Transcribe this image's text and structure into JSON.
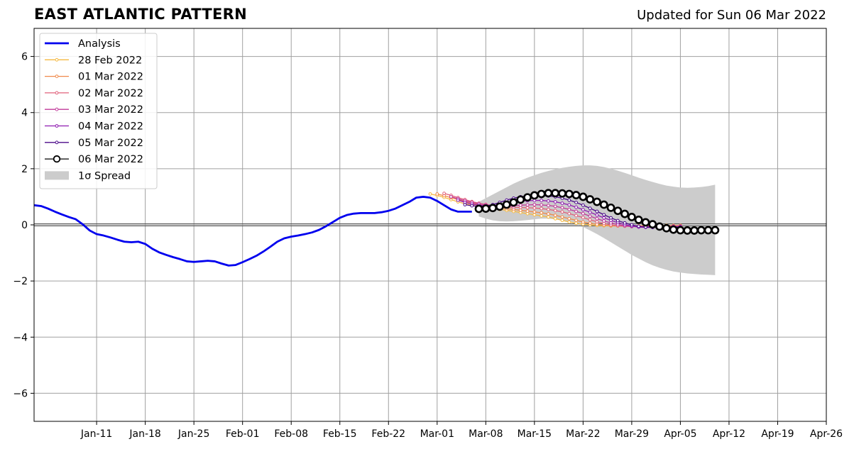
{
  "title": "EAST ATLANTIC PATTERN",
  "updated": "Updated for Sun 06 Mar 2022",
  "chart_data": {
    "type": "line",
    "title": "EAST ATLANTIC PATTERN",
    "subtitle": "Updated for Sun 06 Mar 2022",
    "xlabel": "",
    "ylabel": "",
    "x_range": [
      "2022-01-02",
      "2022-04-26"
    ],
    "ylim": [
      -7,
      7
    ],
    "y_ticks": [
      -6,
      -4,
      -2,
      0,
      2,
      4,
      6
    ],
    "y_tick_labels": [
      "−6",
      "−4",
      "−2",
      "0",
      "2",
      "4",
      "6"
    ],
    "x_ticks": [
      "2022-01-11",
      "2022-01-18",
      "2022-01-25",
      "2022-02-01",
      "2022-02-08",
      "2022-02-15",
      "2022-02-22",
      "2022-03-01",
      "2022-03-08",
      "2022-03-15",
      "2022-03-22",
      "2022-03-29",
      "2022-04-05",
      "2022-04-12",
      "2022-04-19",
      "2022-04-26"
    ],
    "x_tick_labels": [
      "Jan-11",
      "Jan-18",
      "Jan-25",
      "Feb-01",
      "Feb-08",
      "Feb-15",
      "Feb-22",
      "Mar-01",
      "Mar-08",
      "Mar-15",
      "Mar-22",
      "Mar-29",
      "Apr-05",
      "Apr-12",
      "Apr-19",
      "Apr-26"
    ],
    "grid": true,
    "zero_line": true,
    "legend_position": "top-left",
    "colors": {
      "analysis": "#0000ee",
      "28 Feb 2022": "#f5b942",
      "01 Mar 2022": "#f0894a",
      "02 Mar 2022": "#e0607a",
      "03 Mar 2022": "#c0399a",
      "04 Mar 2022": "#8e1bb0",
      "05 Mar 2022": "#4b0a8a",
      "06 Mar 2022": "#000000",
      "spread": "#cccccc"
    },
    "analysis": {
      "name": "Analysis",
      "x": [
        "2022-01-02",
        "2022-01-03",
        "2022-01-04",
        "2022-01-05",
        "2022-01-06",
        "2022-01-07",
        "2022-01-08",
        "2022-01-09",
        "2022-01-10",
        "2022-01-11",
        "2022-01-12",
        "2022-01-13",
        "2022-01-14",
        "2022-01-15",
        "2022-01-16",
        "2022-01-17",
        "2022-01-18",
        "2022-01-19",
        "2022-01-20",
        "2022-01-21",
        "2022-01-22",
        "2022-01-23",
        "2022-01-24",
        "2022-01-25",
        "2022-01-26",
        "2022-01-27",
        "2022-01-28",
        "2022-01-29",
        "2022-01-30",
        "2022-01-31",
        "2022-02-01",
        "2022-02-02",
        "2022-02-03",
        "2022-02-04",
        "2022-02-05",
        "2022-02-06",
        "2022-02-07",
        "2022-02-08",
        "2022-02-09",
        "2022-02-10",
        "2022-02-11",
        "2022-02-12",
        "2022-02-13",
        "2022-02-14",
        "2022-02-15",
        "2022-02-16",
        "2022-02-17",
        "2022-02-18",
        "2022-02-19",
        "2022-02-20",
        "2022-02-21",
        "2022-02-22",
        "2022-02-23",
        "2022-02-24",
        "2022-02-25",
        "2022-02-26",
        "2022-02-27",
        "2022-02-28",
        "2022-03-01",
        "2022-03-02",
        "2022-03-03",
        "2022-03-04",
        "2022-03-05",
        "2022-03-06"
      ],
      "values": [
        0.7,
        0.67,
        0.58,
        0.47,
        0.37,
        0.28,
        0.2,
        0.02,
        -0.2,
        -0.33,
        -0.38,
        -0.45,
        -0.53,
        -0.6,
        -0.62,
        -0.6,
        -0.68,
        -0.85,
        -0.98,
        -1.07,
        -1.15,
        -1.22,
        -1.3,
        -1.32,
        -1.3,
        -1.28,
        -1.3,
        -1.38,
        -1.45,
        -1.43,
        -1.33,
        -1.22,
        -1.1,
        -0.95,
        -0.78,
        -0.6,
        -0.48,
        -0.42,
        -0.38,
        -0.33,
        -0.27,
        -0.18,
        -0.05,
        0.1,
        0.25,
        0.35,
        0.4,
        0.42,
        0.42,
        0.42,
        0.45,
        0.5,
        0.58,
        0.7,
        0.82,
        0.97,
        1.0,
        0.97,
        0.85,
        0.7,
        0.55,
        0.47,
        0.47,
        0.47
      ]
    },
    "series": [
      {
        "name": "28 Feb 2022",
        "start": "2022-02-28",
        "values": [
          1.1,
          1.05,
          0.98,
          0.9,
          0.82,
          0.75,
          0.7,
          0.66,
          0.62,
          0.58,
          0.55,
          0.52,
          0.48,
          0.44,
          0.4,
          0.36,
          0.32,
          0.28,
          0.22,
          0.16,
          0.1,
          0.06,
          0.02,
          0.0,
          -0.02,
          -0.03,
          -0.04,
          -0.04,
          -0.04,
          -0.04,
          -0.04,
          -0.03,
          -0.02,
          -0.02,
          -0.02,
          -0.02,
          -0.02
        ]
      },
      {
        "name": "01 Mar 2022",
        "start": "2022-03-01",
        "values": [
          1.1,
          1.04,
          0.97,
          0.9,
          0.83,
          0.77,
          0.72,
          0.67,
          0.64,
          0.61,
          0.58,
          0.55,
          0.52,
          0.49,
          0.46,
          0.43,
          0.39,
          0.34,
          0.28,
          0.22,
          0.16,
          0.1,
          0.06,
          0.02,
          -0.01,
          -0.03,
          -0.04,
          -0.04,
          -0.04,
          -0.04,
          -0.04,
          -0.03,
          -0.03,
          -0.03,
          -0.03,
          -0.03
        ]
      },
      {
        "name": "02 Mar 2022",
        "start": "2022-03-02",
        "values": [
          1.12,
          1.05,
          0.97,
          0.9,
          0.83,
          0.77,
          0.73,
          0.69,
          0.66,
          0.64,
          0.62,
          0.62,
          0.61,
          0.6,
          0.58,
          0.55,
          0.51,
          0.46,
          0.4,
          0.33,
          0.26,
          0.18,
          0.11,
          0.05,
          0.0,
          -0.03,
          -0.05,
          -0.06,
          -0.06,
          -0.05,
          -0.04,
          -0.04,
          -0.04,
          -0.04,
          -0.04
        ]
      },
      {
        "name": "03 Mar 2022",
        "start": "2022-03-03",
        "values": [
          1.0,
          0.93,
          0.86,
          0.8,
          0.75,
          0.71,
          0.68,
          0.67,
          0.67,
          0.68,
          0.7,
          0.71,
          0.72,
          0.71,
          0.69,
          0.66,
          0.61,
          0.55,
          0.48,
          0.4,
          0.31,
          0.22,
          0.14,
          0.07,
          0.01,
          -0.03,
          -0.06,
          -0.07,
          -0.07,
          -0.06,
          -0.05,
          -0.05,
          -0.05,
          -0.05
        ]
      },
      {
        "name": "04 Mar 2022",
        "start": "2022-03-04",
        "values": [
          0.88,
          0.8,
          0.74,
          0.7,
          0.68,
          0.69,
          0.71,
          0.75,
          0.8,
          0.84,
          0.86,
          0.87,
          0.87,
          0.85,
          0.82,
          0.77,
          0.71,
          0.63,
          0.54,
          0.45,
          0.35,
          0.25,
          0.16,
          0.08,
          0.01,
          -0.04,
          -0.08,
          -0.09,
          -0.09,
          -0.08,
          -0.07,
          -0.07,
          -0.07
        ]
      },
      {
        "name": "05 Mar 2022",
        "start": "2022-03-05",
        "values": [
          0.72,
          0.68,
          0.66,
          0.67,
          0.72,
          0.8,
          0.88,
          0.95,
          1.0,
          1.03,
          1.04,
          1.04,
          1.03,
          1.0,
          0.95,
          0.88,
          0.8,
          0.7,
          0.59,
          0.48,
          0.36,
          0.25,
          0.15,
          0.07,
          0.0,
          -0.05,
          -0.08,
          -0.09,
          -0.09,
          -0.08,
          -0.08,
          -0.08
        ]
      },
      {
        "name": "06 Mar 2022",
        "start": "2022-03-07",
        "values": [
          0.57,
          0.58,
          0.6,
          0.65,
          0.72,
          0.8,
          0.9,
          0.98,
          1.05,
          1.1,
          1.13,
          1.13,
          1.12,
          1.1,
          1.06,
          1.0,
          0.91,
          0.82,
          0.72,
          0.61,
          0.5,
          0.39,
          0.28,
          0.18,
          0.09,
          0.02,
          -0.06,
          -0.12,
          -0.17,
          -0.19,
          -0.2,
          -0.2,
          -0.19,
          -0.19,
          -0.19
        ]
      }
    ],
    "spread": {
      "name": "1σ Spread",
      "start": "2022-03-07",
      "upper": [
        0.82,
        0.95,
        1.08,
        1.21,
        1.34,
        1.47,
        1.58,
        1.68,
        1.77,
        1.85,
        1.92,
        1.98,
        2.03,
        2.07,
        2.1,
        2.12,
        2.12,
        2.1,
        2.06,
        2.0,
        1.93,
        1.85,
        1.77,
        1.68,
        1.6,
        1.53,
        1.46,
        1.4,
        1.36,
        1.33,
        1.32,
        1.33,
        1.35,
        1.38,
        1.43
      ],
      "lower": [
        0.3,
        0.22,
        0.16,
        0.13,
        0.12,
        0.13,
        0.15,
        0.17,
        0.2,
        0.22,
        0.22,
        0.2,
        0.16,
        0.1,
        0.02,
        -0.08,
        -0.2,
        -0.33,
        -0.47,
        -0.62,
        -0.77,
        -0.92,
        -1.07,
        -1.2,
        -1.33,
        -1.44,
        -1.53,
        -1.6,
        -1.66,
        -1.7,
        -1.73,
        -1.75,
        -1.77,
        -1.78,
        -1.79
      ]
    },
    "legend": [
      "Analysis",
      "28 Feb 2022",
      "01 Mar 2022",
      "02 Mar 2022",
      "03 Mar 2022",
      "04 Mar 2022",
      "05 Mar 2022",
      "06 Mar 2022",
      "1σ Spread"
    ]
  }
}
